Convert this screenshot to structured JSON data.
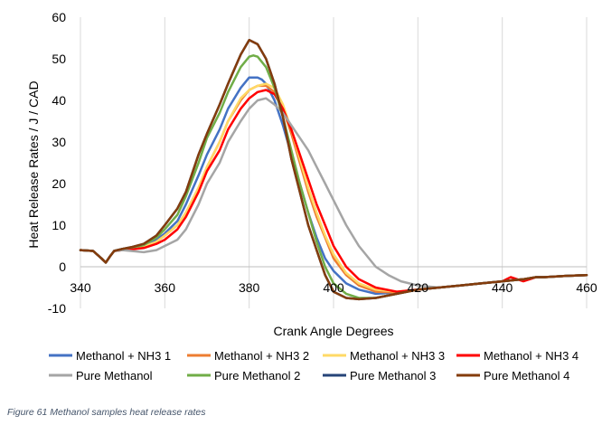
{
  "chart_data": {
    "type": "line",
    "title": "",
    "xlabel": "Crank Angle Degrees",
    "ylabel": "Heat Release Rates / J / CAD",
    "xlim": [
      340,
      460
    ],
    "ylim": [
      -10,
      60
    ],
    "xticks": [
      340,
      360,
      380,
      400,
      420,
      440,
      460
    ],
    "yticks": [
      -10,
      0,
      10,
      20,
      30,
      40,
      50,
      60
    ],
    "grid": "vertical",
    "legend_position": "bottom",
    "series": [
      {
        "name": "Methanol + NH3 1",
        "color": "#4472c4",
        "x": [
          340,
          343,
          345,
          346,
          347,
          348,
          350,
          352,
          355,
          358,
          360,
          363,
          365,
          368,
          370,
          373,
          375,
          378,
          380,
          382,
          383,
          384,
          386,
          388,
          390,
          392,
          394,
          396,
          398,
          400,
          403,
          406,
          410,
          415,
          420,
          425,
          430,
          435,
          440,
          445,
          448,
          450,
          455,
          460
        ],
        "y": [
          4,
          3.8,
          2,
          1,
          2.5,
          3.8,
          4.3,
          4.5,
          5,
          6.5,
          8,
          11,
          15,
          22,
          27,
          33,
          38,
          43,
          45.5,
          45.5,
          45,
          44,
          40,
          34,
          27,
          20,
          13,
          7,
          2,
          -1,
          -4,
          -5.5,
          -6.5,
          -6.2,
          -5.5,
          -5,
          -4.5,
          -4,
          -3.5,
          -3,
          -2.5,
          -2.5,
          -2.2,
          -2
        ]
      },
      {
        "name": "Methanol + NH3 2",
        "color": "#ed7d31",
        "x": [
          340,
          343,
          345,
          346,
          347,
          348,
          350,
          352,
          355,
          358,
          360,
          363,
          365,
          368,
          370,
          373,
          375,
          378,
          380,
          382,
          384,
          386,
          388,
          390,
          392,
          394,
          396,
          398,
          400,
          403,
          406,
          410,
          415,
          420,
          425,
          430,
          435,
          440,
          445,
          448,
          450,
          455,
          460
        ],
        "y": [
          4,
          3.8,
          2,
          1,
          2.5,
          3.8,
          4.2,
          4.4,
          4.8,
          6,
          7.5,
          10,
          13,
          19,
          24,
          30,
          35,
          40,
          42.5,
          43.5,
          43.5,
          42,
          38,
          32,
          25,
          18,
          12,
          7,
          2,
          -2,
          -4.5,
          -6,
          -6.2,
          -5.5,
          -5,
          -4.5,
          -4,
          -3.5,
          -3,
          -2.5,
          -2.5,
          -2.2,
          -2
        ]
      },
      {
        "name": "Methanol + NH3 3",
        "color": "#ffd966",
        "x": [
          340,
          343,
          345,
          346,
          347,
          348,
          350,
          352,
          355,
          358,
          360,
          363,
          365,
          368,
          370,
          373,
          375,
          378,
          380,
          382,
          384,
          386,
          388,
          390,
          392,
          394,
          396,
          398,
          400,
          403,
          406,
          410,
          415,
          420,
          425,
          430,
          435,
          440,
          445,
          448,
          450,
          455,
          460
        ],
        "y": [
          4,
          3.8,
          2,
          1,
          2.5,
          3.8,
          4.2,
          4.4,
          4.8,
          6,
          7.5,
          10,
          13,
          19,
          24,
          30,
          35,
          40.5,
          42.5,
          43.5,
          44,
          43,
          39,
          33,
          26,
          19,
          13,
          7.5,
          3,
          -1.5,
          -4,
          -5.5,
          -6,
          -5.5,
          -5,
          -4.5,
          -4,
          -3.5,
          -3,
          -2.5,
          -2.5,
          -2.2,
          -2
        ]
      },
      {
        "name": "Methanol + NH3 4",
        "color": "#ff0000",
        "x": [
          340,
          343,
          345,
          346,
          347,
          348,
          350,
          352,
          355,
          358,
          360,
          363,
          365,
          368,
          370,
          373,
          375,
          378,
          380,
          382,
          384,
          386,
          388,
          390,
          392,
          394,
          396,
          398,
          400,
          403,
          406,
          410,
          415,
          420,
          425,
          430,
          435,
          440,
          442,
          445,
          448,
          450,
          455,
          460
        ],
        "y": [
          4,
          3.8,
          2,
          1,
          2.5,
          3.8,
          4,
          4.2,
          4.5,
          5.5,
          6.5,
          9,
          12,
          18,
          23,
          28,
          33,
          38,
          40.5,
          42,
          42.5,
          41.5,
          38,
          33,
          27,
          21,
          15,
          10,
          5,
          0,
          -3,
          -5,
          -6,
          -5.5,
          -5,
          -4.5,
          -4,
          -3.5,
          -2.5,
          -3.5,
          -2.5,
          -2.5,
          -2.2,
          -2
        ]
      },
      {
        "name": "Pure Methanol",
        "color": "#a5a5a5",
        "x": [
          340,
          343,
          345,
          346,
          347,
          348,
          350,
          352,
          355,
          358,
          360,
          363,
          365,
          368,
          370,
          373,
          375,
          378,
          380,
          382,
          384,
          386,
          388,
          390,
          392,
          394,
          396,
          398,
          400,
          403,
          406,
          410,
          413,
          416,
          420,
          425,
          430,
          435,
          440,
          445,
          448,
          450,
          455,
          460
        ],
        "y": [
          4,
          3.8,
          2,
          1,
          2.5,
          3.8,
          4,
          3.8,
          3.5,
          4,
          5,
          6.5,
          9,
          15,
          20,
          25,
          30,
          35,
          38,
          40,
          40.5,
          39,
          37,
          34,
          31,
          28,
          24,
          20,
          16,
          10,
          5,
          0,
          -2,
          -3.5,
          -4.5,
          -5,
          -4.5,
          -4,
          -3.5,
          -3,
          -2.5,
          -2.5,
          -2.2,
          -2
        ]
      },
      {
        "name": "Pure Methanol 2",
        "color": "#70ad47",
        "x": [
          340,
          343,
          345,
          346,
          347,
          348,
          350,
          352,
          355,
          358,
          360,
          363,
          365,
          368,
          370,
          373,
          375,
          378,
          380,
          381,
          382,
          384,
          386,
          388,
          390,
          392,
          394,
          396,
          398,
          400,
          403,
          406,
          410,
          415,
          420,
          425,
          430,
          435,
          440,
          445,
          448,
          450,
          455,
          460
        ],
        "y": [
          4,
          3.8,
          2,
          1,
          2.5,
          3.8,
          4.3,
          4.6,
          5.2,
          7,
          9,
          12.5,
          17,
          25,
          31,
          37,
          42,
          48,
          50.5,
          50.8,
          50.5,
          48,
          43,
          36,
          28,
          20,
          13,
          6,
          0,
          -4,
          -6.5,
          -7.5,
          -7.5,
          -6.5,
          -5.5,
          -5,
          -4.5,
          -4,
          -3.5,
          -3,
          -2.5,
          -2.5,
          -2.2,
          -2
        ]
      },
      {
        "name": "Pure Methanol 3",
        "color": "#264478",
        "x": [
          340,
          343,
          345,
          346,
          347,
          348,
          350,
          352,
          355,
          358,
          360,
          363,
          365,
          368,
          370,
          373,
          375,
          378,
          380,
          382,
          384,
          386,
          388,
          390,
          392,
          394,
          396,
          398,
          400,
          403,
          406,
          410,
          415,
          420,
          425,
          430,
          435,
          440,
          445,
          448,
          450,
          455,
          460
        ],
        "y": [
          4,
          3.8,
          2,
          1,
          2.5,
          3.8,
          4.3,
          4.7,
          5.5,
          7.5,
          10,
          14,
          18,
          27,
          32,
          39,
          44,
          51,
          54.5,
          53.5,
          50,
          44,
          36,
          26,
          18,
          10,
          4,
          -2,
          -6,
          -7.5,
          -7.8,
          -7.5,
          -6.5,
          -5.5,
          -5,
          -4.5,
          -4,
          -3.5,
          -3,
          -2.5,
          -2.5,
          -2.2,
          -2
        ]
      },
      {
        "name": "Pure Methanol 4",
        "color": "#843c0c",
        "x": [
          340,
          343,
          345,
          346,
          347,
          348,
          350,
          352,
          355,
          358,
          360,
          363,
          365,
          368,
          370,
          373,
          375,
          378,
          380,
          382,
          384,
          386,
          388,
          390,
          392,
          394,
          396,
          398,
          400,
          403,
          406,
          410,
          415,
          420,
          425,
          430,
          435,
          440,
          445,
          448,
          450,
          455,
          460
        ],
        "y": [
          4,
          3.8,
          2,
          1,
          2.5,
          3.8,
          4.3,
          4.7,
          5.5,
          7.5,
          10,
          14,
          18,
          27,
          32,
          39,
          44,
          51,
          54.5,
          53.5,
          50,
          44,
          36,
          26,
          18,
          10,
          4,
          -2,
          -6,
          -7.5,
          -7.8,
          -7.5,
          -6.5,
          -5.5,
          -5,
          -4.5,
          -4,
          -3.5,
          -3,
          -2.5,
          -2.5,
          -2.2,
          -2
        ]
      }
    ]
  },
  "figure": {
    "caption": "Figure 61 Methanol samples heat release rates"
  }
}
